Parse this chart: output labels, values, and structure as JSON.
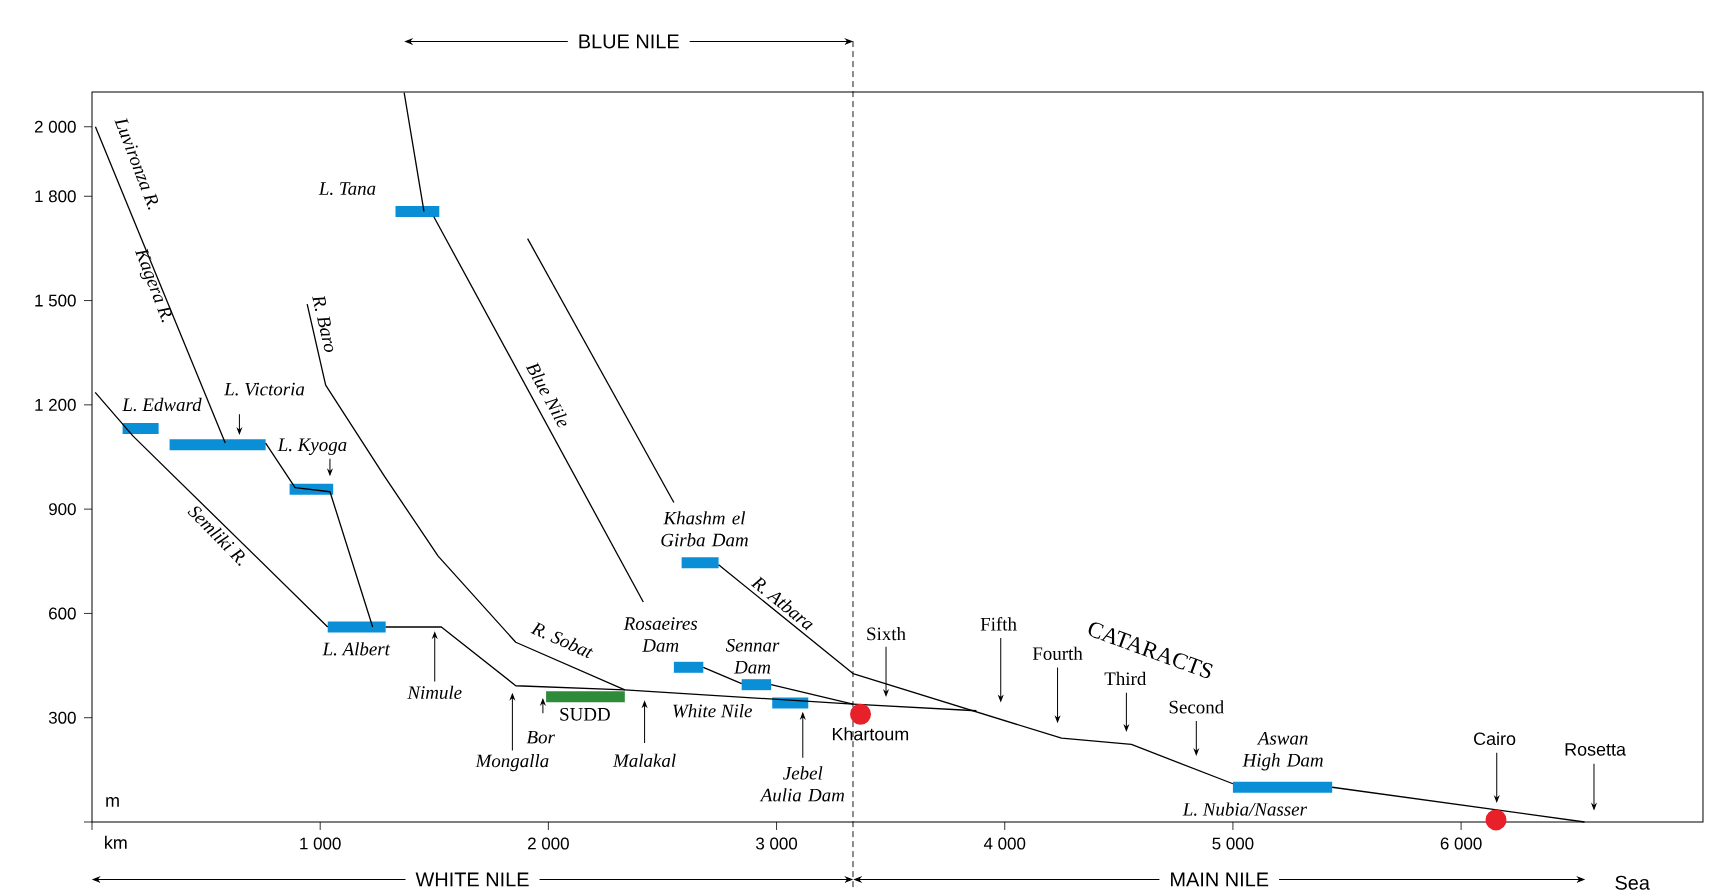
{
  "chart_data": {
    "type": "line",
    "xlabel": "km",
    "ylabel": "m",
    "xlim": [
      0,
      7060
    ],
    "ylim": [
      0,
      2100
    ],
    "xticks": [
      {
        "value": 0,
        "label": null
      },
      {
        "value": 1000,
        "label": "1 000"
      },
      {
        "value": 2000,
        "label": "2 000"
      },
      {
        "value": 3000,
        "label": "3 000"
      },
      {
        "value": 4000,
        "label": "4 000"
      },
      {
        "value": 5000,
        "label": "5 000"
      },
      {
        "value": 6000,
        "label": "6 000"
      }
    ],
    "yticks": [
      {
        "value": 0,
        "label": null
      },
      300,
      600,
      900,
      {
        "value": 1200,
        "label": "1 200"
      },
      {
        "value": 1500,
        "label": "1 500"
      },
      {
        "value": 1800,
        "label": "1 800"
      },
      {
        "value": 2000,
        "label": "2 000"
      }
    ],
    "grid": false,
    "marker": "none",
    "series": [
      {
        "color": "#000000",
        "x": [
          15,
          584
        ],
        "values": [
          2000,
          1090
        ]
      },
      {
        "color": "#000000",
        "x": [
          761,
          890,
          1043,
          1230
        ],
        "values": [
          1090,
          962,
          950,
          561
        ]
      },
      {
        "color": "#000000",
        "x": [
          14,
          180,
          1033
        ],
        "values": [
          1236,
          1110,
          561
        ]
      },
      {
        "color": "#000000",
        "x": [
          1287,
          1531,
          1857,
          2335,
          3335,
          3876
        ],
        "values": [
          561,
          561,
          392,
          380,
          339,
          320
        ]
      },
      {
        "color": "#000000",
        "x": [
          943,
          1024,
          1282,
          1517,
          1857,
          2335
        ],
        "values": [
          1490,
          1257,
          994,
          765,
          517,
          380
        ]
      },
      {
        "color": "#000000",
        "x": [
          1368,
          1455
        ],
        "values": [
          2098,
          1756
        ]
      },
      {
        "color": "#000000",
        "x": [
          1498,
          2416
        ],
        "values": [
          1741,
          633
        ]
      },
      {
        "color": "#000000",
        "x": [
          2679,
          2847
        ],
        "values": [
          445,
          398
        ]
      },
      {
        "color": "#000000",
        "x": [
          2976,
          3335
        ],
        "values": [
          395,
          339
        ]
      },
      {
        "color": "#000000",
        "x": [
          1909,
          2550
        ],
        "values": [
          1678,
          919
        ]
      },
      {
        "color": "#000000",
        "x": [
          2746,
          3335,
          4249,
          4555,
          5000
        ],
        "values": [
          740,
          427,
          241,
          223,
          110
        ]
      },
      {
        "color": "#000000",
        "x": [
          5435,
          6541
        ],
        "values": [
          100,
          0
        ]
      },
      {
        "color": "#0a8fd6",
        "x": [
          134,
          292
        ],
        "values": [
          1132,
          1132
        ]
      },
      {
        "color": "#0a8fd6",
        "x": [
          340,
          761
        ],
        "values": [
          1085,
          1085
        ]
      },
      {
        "color": "#0a8fd6",
        "x": [
          866,
          1057
        ],
        "values": [
          957,
          957
        ]
      },
      {
        "color": "#0a8fd6",
        "x": [
          1033,
          1287
        ],
        "values": [
          561,
          561
        ]
      },
      {
        "color": "#0a8fd6",
        "x": [
          1330,
          1522
        ],
        "values": [
          1756,
          1756
        ]
      },
      {
        "color": "#0a8fd6",
        "x": [
          2584,
          2746
        ],
        "values": [
          746,
          746
        ]
      },
      {
        "color": "#0a8fd6",
        "x": [
          2550,
          2679
        ],
        "values": [
          445,
          445
        ]
      },
      {
        "color": "#0a8fd6",
        "x": [
          2847,
          2976
        ],
        "values": [
          395,
          395
        ]
      },
      {
        "color": "#0a8fd6",
        "x": [
          2981,
          3139
        ],
        "values": [
          342,
          342
        ]
      },
      {
        "color": "#0a8fd6",
        "x": [
          5000,
          5435
        ],
        "values": [
          100,
          100
        ]
      },
      {
        "color": "#2e8b3a",
        "x": [
          1990,
          2335
        ],
        "values": [
          360,
          360
        ]
      },
      {
        "type": "scatter",
        "marker": "circle",
        "color": "#e8202a",
        "x": [
          3368,
          6153
        ],
        "values": [
          310,
          6
        ]
      }
    ],
    "ref_lines": [
      {
        "axis": "x",
        "value": 3335,
        "line_style": "dashed"
      }
    ],
    "annotations": [
      "Luvironza R.",
      "Kagera R.",
      "Semliki R.",
      {
        "text": "R. Baro",
        "x": 962,
        "y": 1433
      },
      {
        "text": "Blue Nile",
        "x": 1923,
        "y": 1229
      },
      {
        "text": "R. Sobat",
        "x": 2062,
        "y": 458
      },
      "R. Atbara",
      {
        "text": "White Nile",
        "x": 2718,
        "y": 361
      },
      {
        "text": "L. Edward",
        "x": 211,
        "y": 1132
      },
      {
        "text": "L. Victoria",
        "x": 646,
        "y": 1113
      },
      "L. Kyoga",
      {
        "text": "L. Tana",
        "x": 1426,
        "y": 1756
      },
      {
        "text": "L. Albert",
        "x": 1158,
        "y": 561
      },
      {
        "text": "Khashm el Girba Dam",
        "x": 2665,
        "y": 746
      },
      {
        "text": "Rosaeires Dam",
        "x": 2612,
        "y": 445
      },
      {
        "text": "Sennar Dam",
        "x": 2909,
        "y": 395
      },
      {
        "text": "Jebel Aulia Dam",
        "x": 3115,
        "y": 317
      },
      {
        "text": "SUDD",
        "x": 2160,
        "y": 360
      },
      {
        "text": "Bor",
        "x": 1976,
        "y": 357
      },
      {
        "text": "Nimule",
        "x": 1502,
        "y": 549
      },
      "Mongalla",
      "Malakal",
      {
        "text": "Khartoum",
        "x": 3368,
        "y": 310
      },
      "Sixth",
      "Fifth",
      "Fourth",
      "Third",
      "Second",
      "CATARACTS",
      {
        "text": "Aswan High Dam",
        "x": 5220,
        "y": 100
      },
      {
        "text": "L. Nubia/Nasser",
        "x": 5220,
        "y": 100
      },
      "Cairo",
      "Rosetta",
      "Sea",
      "BLUE NILE",
      "WHITE NILE",
      "MAIN NILE"
    ]
  }
}
